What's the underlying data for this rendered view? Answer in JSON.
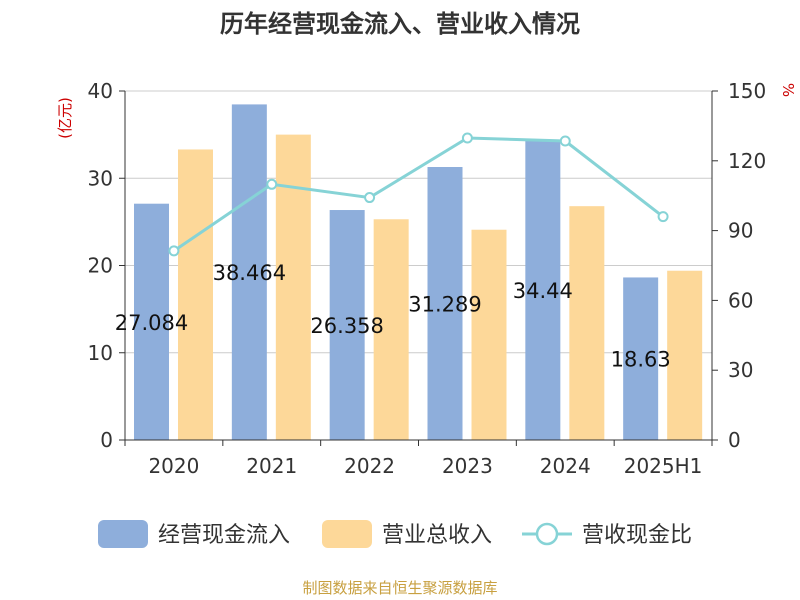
{
  "chart_data": {
    "type": "bar",
    "title": "历年经营现金流入、营业收入情况",
    "categories": [
      "2020",
      "2021",
      "2022",
      "2023",
      "2024",
      "2025H1"
    ],
    "series": [
      {
        "name": "经营现金流入",
        "type": "bar",
        "axis": "left",
        "color": "#8eaedb",
        "values": [
          27.084,
          38.464,
          26.358,
          31.289,
          34.44,
          18.63
        ]
      },
      {
        "name": "营业总收入",
        "type": "bar",
        "axis": "left",
        "color": "#fdd899",
        "values": [
          33.3,
          35.0,
          25.3,
          24.1,
          26.8,
          19.4
        ]
      },
      {
        "name": "营收现金比",
        "type": "line",
        "axis": "right",
        "color": "#86d3d6",
        "values": [
          81.3,
          109.9,
          104.2,
          129.8,
          128.5,
          96.0
        ]
      }
    ],
    "data_labels": [
      "27.084",
      "38.464",
      "26.358",
      "31.289",
      "34.44",
      "18.63"
    ],
    "yaxis_left": {
      "label": "(亿元)",
      "ticks": [
        "0",
        "10",
        "20",
        "30",
        "40"
      ],
      "min": 0,
      "max": 40
    },
    "yaxis_right": {
      "label": "%",
      "ticks": [
        "0",
        "30",
        "60",
        "90",
        "120",
        "150"
      ],
      "min": 0,
      "max": 150
    },
    "grid": true,
    "legend_position": "bottom"
  },
  "source": "制图数据来自恒生聚源数据库",
  "colors": {
    "axis_label": "#cc0000",
    "source": "#c8a040",
    "grid": "#cccccc"
  }
}
